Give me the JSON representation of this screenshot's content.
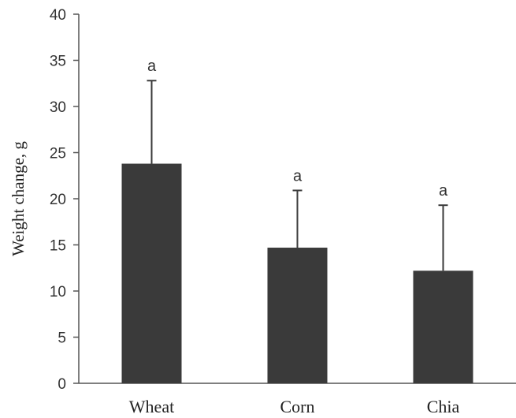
{
  "chart_data": {
    "type": "bar",
    "categories": [
      "Wheat",
      "Corn",
      "Chia"
    ],
    "values": [
      23.8,
      14.7,
      12.2
    ],
    "error_upper": [
      32.8,
      20.9,
      19.3
    ],
    "significance": [
      "a",
      "a",
      "a"
    ],
    "title": "",
    "xlabel": "",
    "ylabel": "Weight change, g",
    "ylim": [
      0,
      40
    ],
    "yticks": [
      0,
      5,
      10,
      15,
      20,
      25,
      30,
      35,
      40
    ],
    "grid": false,
    "legend": "none",
    "bar_color": "#3a3a3a"
  }
}
